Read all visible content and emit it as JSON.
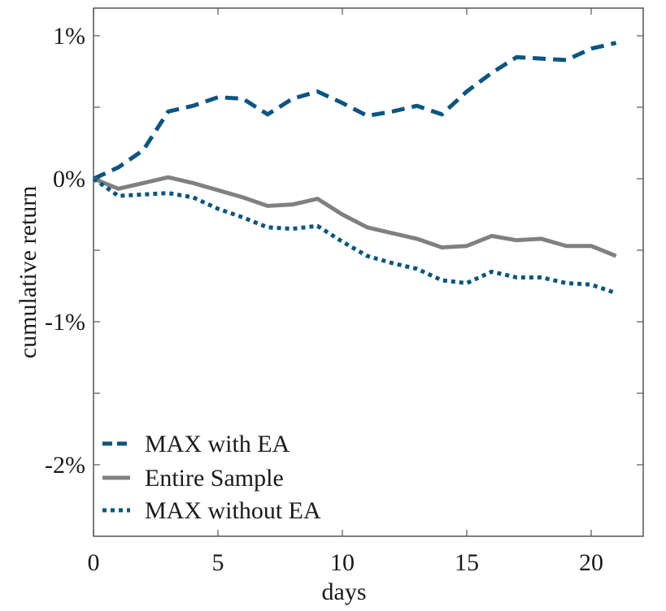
{
  "chart_data": {
    "type": "line",
    "title": "",
    "xlabel": "days",
    "ylabel": "cumulative return",
    "xlim": [
      0,
      22.2
    ],
    "ylim": [
      -2.5,
      1.2
    ],
    "x_ticks": [
      0,
      5,
      10,
      15,
      20
    ],
    "x_tick_labels": [
      "0",
      "5",
      "10",
      "15",
      "20"
    ],
    "y_ticks": [
      1,
      0.5,
      0,
      -0.5,
      -1,
      -1.5,
      -2
    ],
    "y_tick_labels": [
      "1%",
      "",
      "0%",
      "",
      "-1%",
      "",
      "-2%"
    ],
    "grid": false,
    "legend_position": "bottom-left",
    "x": [
      0,
      1,
      2,
      3,
      4,
      5,
      6,
      7,
      8,
      9,
      10,
      11,
      12,
      13,
      14,
      15,
      16,
      17,
      18,
      19,
      20,
      21
    ],
    "series": [
      {
        "name": "MAX with EA",
        "style": "dashed",
        "color": "#0b5583",
        "values": [
          0,
          0.08,
          0.2,
          0.47,
          0.51,
          0.57,
          0.56,
          0.45,
          0.56,
          0.61,
          0.53,
          0.44,
          0.47,
          0.51,
          0.45,
          0.61,
          0.74,
          0.85,
          0.84,
          0.83,
          0.91,
          0.95
        ]
      },
      {
        "name": "Entire Sample",
        "style": "solid",
        "color": "#808080",
        "values": [
          0,
          -0.07,
          -0.03,
          0.01,
          -0.03,
          -0.08,
          -0.13,
          -0.19,
          -0.18,
          -0.14,
          -0.25,
          -0.34,
          -0.38,
          -0.42,
          -0.48,
          -0.47,
          -0.4,
          -0.43,
          -0.42,
          -0.47,
          -0.47,
          -0.54
        ]
      },
      {
        "name": "MAX without EA",
        "style": "dotted",
        "color": "#0b5583",
        "values": [
          0,
          -0.12,
          -0.11,
          -0.1,
          -0.13,
          -0.21,
          -0.27,
          -0.34,
          -0.35,
          -0.33,
          -0.44,
          -0.54,
          -0.59,
          -0.63,
          -0.71,
          -0.73,
          -0.65,
          -0.69,
          -0.69,
          -0.73,
          -0.74,
          -0.8
        ]
      }
    ]
  }
}
